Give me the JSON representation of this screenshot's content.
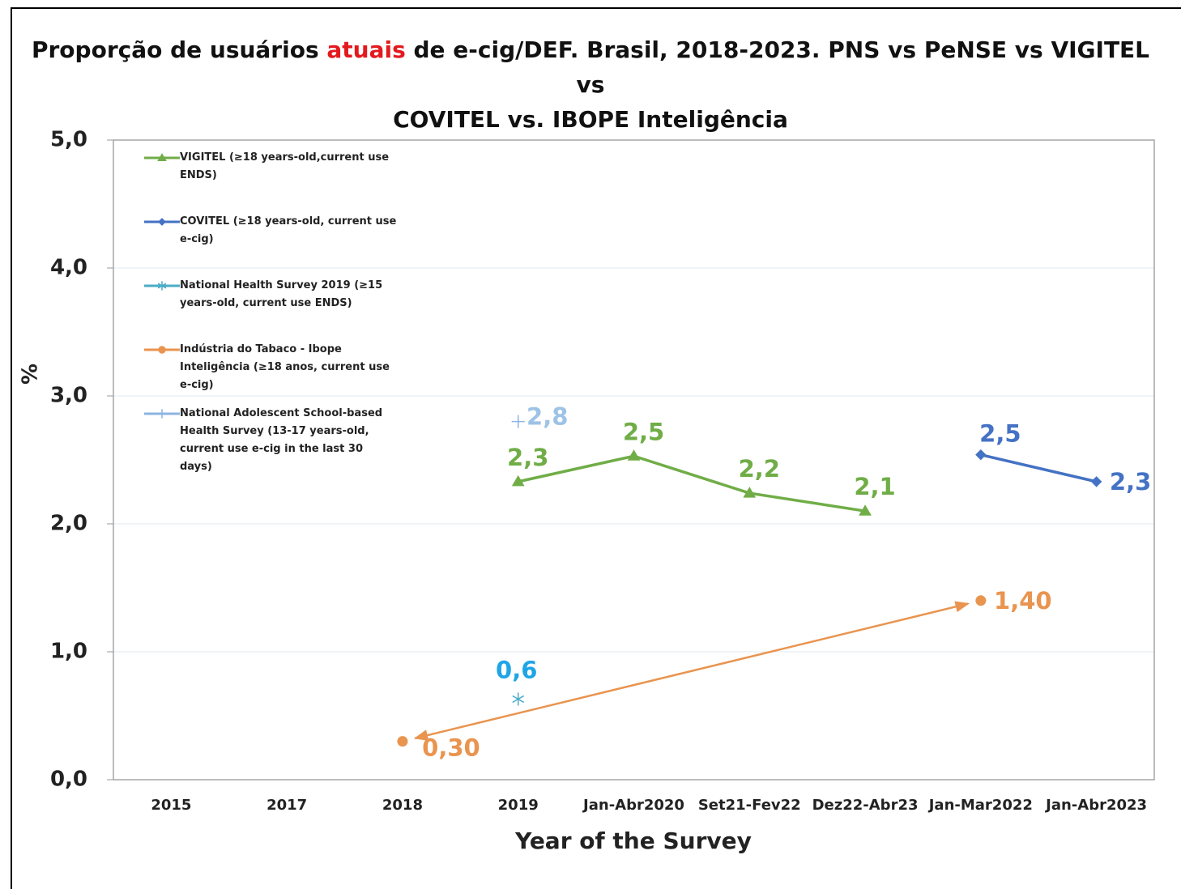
{
  "chart_data": {
    "type": "line",
    "title": [
      "Proporção de usuários ",
      "atuais",
      " de e-cig/DEF. Brasil, 2018-2023. PNS vs PeNSE vs VIGITEL vs",
      "COVITEL vs. IBOPE Inteligência"
    ],
    "x_label": "Year of the Survey",
    "y_label": "%",
    "categories": [
      "2015",
      "2017",
      "2018",
      "2019",
      "Jan-Abr2020",
      "Set21-Fev22",
      "Dez22-Abr23",
      "Jan-Mar2022",
      "Jan-Abr2023"
    ],
    "ylim": [
      0,
      5
    ],
    "yticks": [
      {
        "value": 0,
        "label": "0,0"
      },
      {
        "value": 1,
        "label": "1,0"
      },
      {
        "value": 2,
        "label": "2,0"
      },
      {
        "value": 3,
        "label": "3,0"
      },
      {
        "value": 4,
        "label": "4,0"
      },
      {
        "value": 5,
        "label": "5,0"
      }
    ],
    "grid": true,
    "legend": "upper left",
    "series": [
      {
        "name": "VIGITEL (≥18 years-old,current use ENDS)",
        "color": "#70ad47",
        "marker": "triangle",
        "values": [
          null,
          null,
          null,
          2.33,
          2.53,
          2.24,
          2.1,
          null,
          null
        ],
        "value_labels": [
          null,
          null,
          null,
          "2,3",
          "2,5",
          "2,2",
          "2,1",
          null,
          null
        ]
      },
      {
        "name": "COVITEL (≥18 years-old, current use e-cig)",
        "color": "#4472c4",
        "marker": "diamond",
        "values": [
          null,
          null,
          null,
          null,
          null,
          null,
          null,
          2.54,
          2.33
        ],
        "value_labels": [
          null,
          null,
          null,
          null,
          null,
          null,
          null,
          "2,5",
          "2,3"
        ]
      },
      {
        "name": "National Health Survey 2019 (≥15 years-old, current use ENDS)",
        "color": "#4bacc6",
        "label_color": "#1ea5e6",
        "marker": "asterisk",
        "values": [
          null,
          null,
          null,
          0.63,
          null,
          null,
          null,
          null,
          null
        ],
        "value_labels": [
          null,
          null,
          null,
          "0,6",
          null,
          null,
          null,
          null,
          null
        ]
      },
      {
        "name": "Indústria do Tabaco - Ibope Inteligência (≥18 anos, current use e-cig)",
        "color": "#e9944f",
        "marker": "circle",
        "arrows": true,
        "values": [
          null,
          null,
          0.3,
          null,
          null,
          null,
          null,
          1.4,
          null
        ],
        "value_labels": [
          null,
          null,
          "0,30",
          null,
          null,
          null,
          null,
          "1,40",
          null
        ]
      },
      {
        "name": "National Adolescent School-based Health Survey (13-17 years-old, current use e-cig in the last 30 days)",
        "color": "#8db4e2",
        "label_color": "#9dc3e6",
        "marker": "plus",
        "values": [
          null,
          null,
          null,
          2.8,
          null,
          null,
          null,
          null,
          null
        ],
        "value_labels": [
          null,
          null,
          null,
          "2,8",
          null,
          null,
          null,
          null,
          null
        ]
      }
    ]
  }
}
